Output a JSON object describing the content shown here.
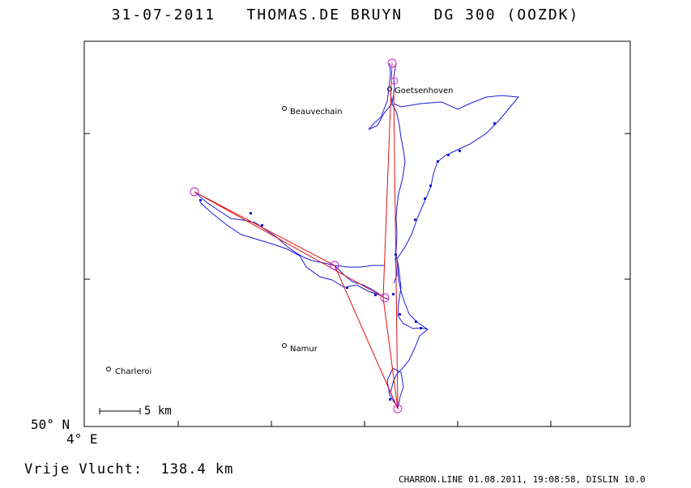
{
  "header": {
    "date": "31-07-2011",
    "pilot": "THOMAS.DE BRUYN",
    "glider": "DG 300 (OOZDK)"
  },
  "axes": {
    "lat_label": "50° N",
    "lon_label": "4° E"
  },
  "places": [
    {
      "name": "Goetsenhoven"
    },
    {
      "name": "Beauvechain"
    },
    {
      "name": "Namur"
    },
    {
      "name": "Charleroi"
    }
  ],
  "scale_bar": {
    "label": "5 km"
  },
  "summary": {
    "distance_text": "Vrije Vlucht:  138.4 km"
  },
  "footer": {
    "text": "CHARRON.LINE 01.08.2011, 19:08:58, DISLIN 10.0"
  },
  "colors": {
    "track": "#1a1adc",
    "task": "#e01010",
    "turnpoint": "#d020d0",
    "frame": "#000000"
  }
}
